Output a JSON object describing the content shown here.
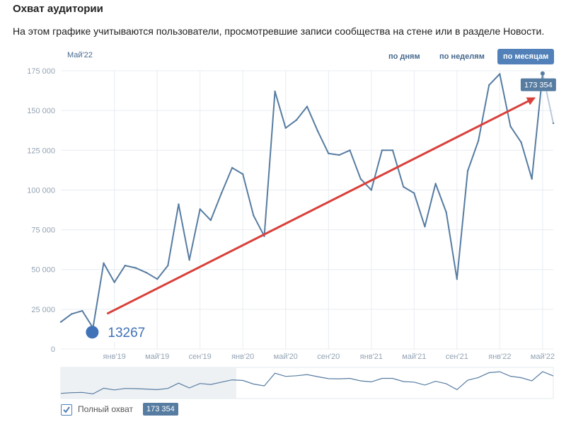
{
  "header": {
    "title": "Охват аудитории",
    "subtitle": "На этом графике учитываются пользователи, просмотревшие записи сообщества на стене или в разделе Новости."
  },
  "period_selector": {
    "hover_label": "Май'22",
    "buttons": [
      {
        "label": "по дням",
        "active": false
      },
      {
        "label": "по неделям",
        "active": false
      },
      {
        "label": "по месяцам",
        "active": true
      }
    ]
  },
  "chart_data": {
    "type": "line",
    "title": "",
    "xlabel": "",
    "ylabel": "",
    "ylim": [
      0,
      175000
    ],
    "yticks": [
      0,
      25000,
      50000,
      75000,
      100000,
      125000,
      150000,
      175000
    ],
    "ytick_labels": [
      "0",
      "25 000",
      "50 000",
      "75 000",
      "100 000",
      "125 000",
      "150 000",
      "175 000"
    ],
    "xticks": [
      {
        "label": "янв'19",
        "index": 5
      },
      {
        "label": "май'19",
        "index": 9
      },
      {
        "label": "сен'19",
        "index": 13
      },
      {
        "label": "янв'20",
        "index": 17
      },
      {
        "label": "май'20",
        "index": 21
      },
      {
        "label": "сен'20",
        "index": 25
      },
      {
        "label": "янв'21",
        "index": 29
      },
      {
        "label": "май'21",
        "index": 33
      },
      {
        "label": "сен'21",
        "index": 37
      },
      {
        "label": "янв'22",
        "index": 41
      },
      {
        "label": "май'22",
        "index": 45
      }
    ],
    "grid": true,
    "series": [
      {
        "name": "Полный охват",
        "color": "#577ca1",
        "values": [
          17000,
          22000,
          24000,
          13267,
          54000,
          42000,
          52500,
          51000,
          48000,
          44000,
          52500,
          91000,
          56000,
          88000,
          81000,
          98000,
          114000,
          110000,
          84000,
          71000,
          162000,
          139000,
          144000,
          152500,
          137000,
          123000,
          122000,
          125000,
          107000,
          100000,
          125000,
          125000,
          102000,
          98000,
          77000,
          104000,
          86000,
          44000,
          112000,
          131000,
          166000,
          173000,
          140000,
          130000,
          107000,
          173354,
          142000
        ]
      }
    ],
    "annotations": [
      {
        "type": "point_label",
        "text": "13267",
        "index": 3,
        "color": "#3f72b7"
      },
      {
        "type": "arrow",
        "from_index": 3,
        "to_index": 45,
        "color": "#d9403a"
      },
      {
        "type": "value_badge",
        "text": "173 354",
        "index": 45
      }
    ],
    "colors": {
      "line": "#577ca1",
      "grid": "#e7ecf1",
      "axis_text": "#93a3b4",
      "arrow": "#d9403a",
      "marker": "#3f72b7"
    }
  },
  "footer": {
    "legend_label": "Полный охват",
    "legend_checked": true,
    "value_badge": "173 354"
  }
}
